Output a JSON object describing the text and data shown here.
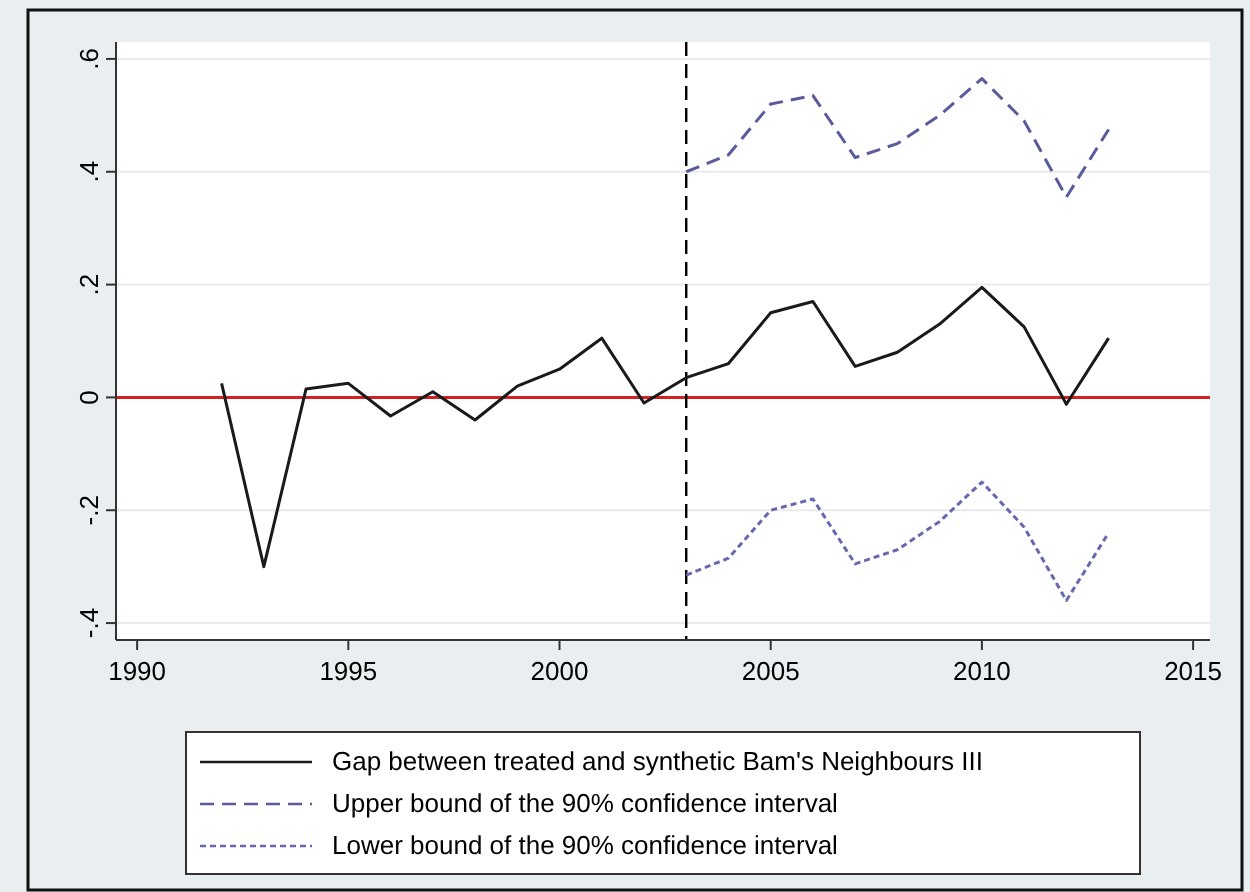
{
  "chart_data": {
    "type": "line",
    "x": [
      1992,
      1993,
      1994,
      1995,
      1996,
      1997,
      1998,
      1999,
      2000,
      2001,
      2002,
      2003,
      2004,
      2005,
      2006,
      2007,
      2008,
      2009,
      2010,
      2011,
      2012,
      2013
    ],
    "series": [
      {
        "name": "Gap between treated and synthetic Bam's Neighbours III",
        "color": "#1a1a1a",
        "line_style": "solid",
        "values": [
          0.025,
          -0.3,
          0.015,
          0.025,
          -0.033,
          0.01,
          -0.04,
          0.02,
          0.05,
          0.105,
          -0.01,
          0.035,
          0.06,
          0.15,
          0.17,
          0.055,
          0.08,
          0.13,
          0.195,
          0.125,
          -0.012,
          0.105
        ]
      },
      {
        "name": "Upper bound of the 90% confidence interval",
        "color": "#5a5a9c",
        "line_style": "dashed",
        "x": [
          2003,
          2004,
          2005,
          2006,
          2007,
          2008,
          2009,
          2010,
          2011,
          2012,
          2013
        ],
        "values": [
          0.4,
          0.43,
          0.52,
          0.535,
          0.425,
          0.45,
          0.5,
          0.565,
          0.49,
          0.355,
          0.475
        ]
      },
      {
        "name": "Lower bound of the 90% confidence interval",
        "color": "#6868b0",
        "line_style": "dotted",
        "x": [
          2003,
          2004,
          2005,
          2006,
          2007,
          2008,
          2009,
          2010,
          2011,
          2012,
          2013
        ],
        "values": [
          -0.315,
          -0.285,
          -0.2,
          -0.18,
          -0.295,
          -0.27,
          -0.22,
          -0.15,
          -0.23,
          -0.36,
          -0.24
        ]
      }
    ],
    "xlim": [
      1989.5,
      2015.4
    ],
    "ylim": [
      -0.43,
      0.63
    ],
    "xticks": [
      1990,
      1995,
      2000,
      2005,
      2010,
      2015
    ],
    "yticks": [
      {
        "value": -0.4,
        "label": "-.4"
      },
      {
        "value": -0.2,
        "label": "-.2"
      },
      {
        "value": 0,
        "label": "0"
      },
      {
        "value": 0.2,
        "label": ".2"
      },
      {
        "value": 0.4,
        "label": ".4"
      },
      {
        "value": 0.6,
        "label": ".6"
      }
    ],
    "grid": "y",
    "legend": "bottom",
    "marker": "none",
    "ref_lines": [
      {
        "axis": "y",
        "value": 0,
        "color": "#d42020",
        "line_style": "solid"
      },
      {
        "axis": "x",
        "value": 2003,
        "color": "#000000",
        "line_style": "dashed"
      }
    ]
  }
}
